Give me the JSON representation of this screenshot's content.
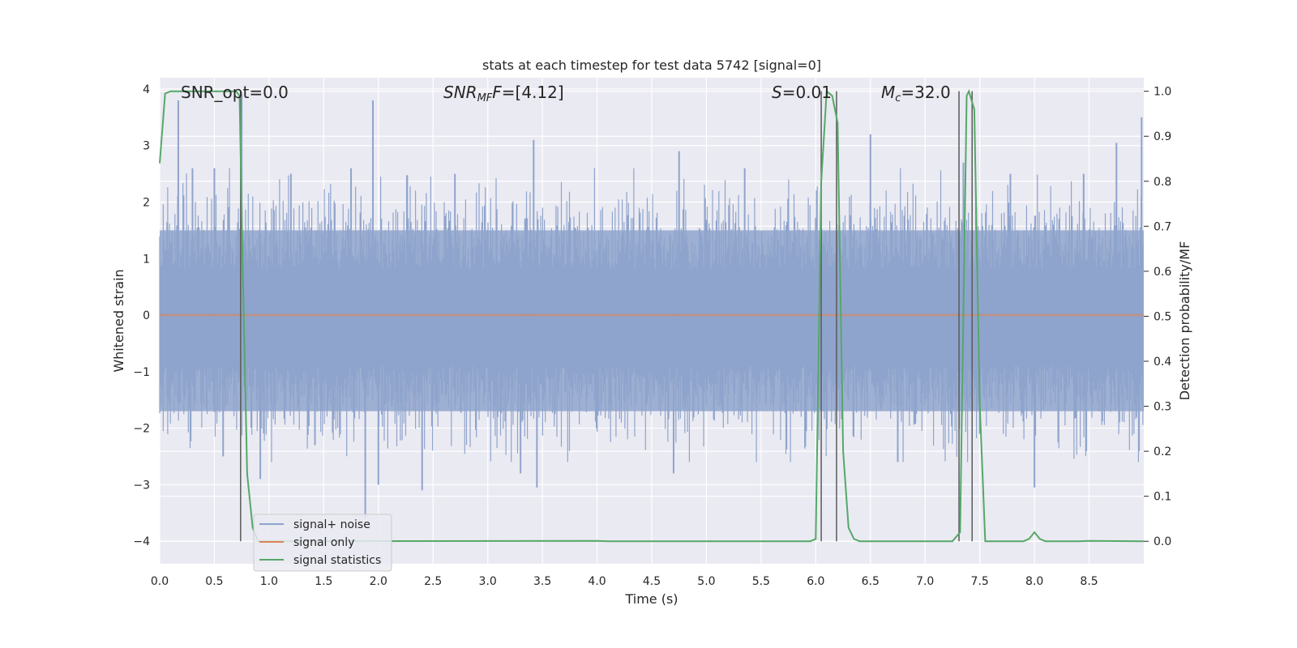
{
  "chart_data": {
    "type": "line",
    "title": "stats at each timestep for test data 5742 [signal=0]",
    "xlabel": "Time (s)",
    "ylabel_left": "Whitened strain",
    "ylabel_right": "Detection probability/MF",
    "xlim": [
      0.0,
      9.0
    ],
    "ylim_left": [
      -4.4,
      4.2
    ],
    "ylim_right": [
      -0.05,
      1.03
    ],
    "x_ticks": [
      "0.0",
      "0.5",
      "1.0",
      "1.5",
      "2.0",
      "2.5",
      "3.0",
      "3.5",
      "4.0",
      "4.5",
      "5.0",
      "5.5",
      "6.0",
      "6.5",
      "7.0",
      "7.5",
      "8.0",
      "8.5"
    ],
    "y_ticks_left": [
      "4",
      "3",
      "2",
      "1",
      "0",
      "−1",
      "−2",
      "−3",
      "−4"
    ],
    "y_ticks_right": [
      "1.0",
      "0.9",
      "0.8",
      "0.7",
      "0.6",
      "0.5",
      "0.4",
      "0.3",
      "0.2",
      "0.1",
      "0.0"
    ],
    "grid": true,
    "legend_position": "lower-left",
    "legend": [
      {
        "label": "signal+ noise",
        "color": "#8fa4cc"
      },
      {
        "label": "signal only",
        "color": "#dd8452"
      },
      {
        "label": "signal statistics",
        "color": "#55a868"
      }
    ],
    "annotations": {
      "snr_opt": "SNR_opt=0.0",
      "snr_mf_name": "SNR",
      "snr_mf_sub": "MF",
      "snr_mf_value": "=[4.12]",
      "s_name": "S",
      "s_value": "=0.01",
      "mc_name": "M",
      "mc_sub": "c",
      "mc_value": "=32.0"
    },
    "noise_series": {
      "name": "signal+ noise",
      "description_band": [
        -1.7,
        1.5
      ],
      "peaks": [
        {
          "x": 0.17,
          "y": 3.8
        },
        {
          "x": 0.3,
          "y": 2.6
        },
        {
          "x": 0.5,
          "y": 2.6
        },
        {
          "x": 0.58,
          "y": -2.5
        },
        {
          "x": 0.75,
          "y": 3.9
        },
        {
          "x": 0.92,
          "y": -2.9
        },
        {
          "x": 1.2,
          "y": 2.5
        },
        {
          "x": 1.42,
          "y": -2.3
        },
        {
          "x": 1.75,
          "y": 2.6
        },
        {
          "x": 1.88,
          "y": -3.6
        },
        {
          "x": 1.95,
          "y": 3.8
        },
        {
          "x": 2.0,
          "y": -3.0
        },
        {
          "x": 2.4,
          "y": -3.1
        },
        {
          "x": 2.7,
          "y": 2.5
        },
        {
          "x": 3.3,
          "y": -2.8
        },
        {
          "x": 3.45,
          "y": -3.05
        },
        {
          "x": 3.42,
          "y": 3.1
        },
        {
          "x": 4.7,
          "y": -2.8
        },
        {
          "x": 4.75,
          "y": 2.9
        },
        {
          "x": 5.35,
          "y": 2.6
        },
        {
          "x": 6.5,
          "y": 3.2
        },
        {
          "x": 6.75,
          "y": -2.6
        },
        {
          "x": 7.35,
          "y": 2.7
        },
        {
          "x": 7.5,
          "y": -2.1
        },
        {
          "x": 7.78,
          "y": 2.5
        },
        {
          "x": 8.0,
          "y": -3.05
        },
        {
          "x": 8.45,
          "y": 2.5
        },
        {
          "x": 8.75,
          "y": 3.05
        },
        {
          "x": 8.98,
          "y": 3.5
        }
      ]
    },
    "signal_only": {
      "name": "signal only",
      "x": [
        0.0,
        9.0
      ],
      "y": [
        0.0,
        0.0
      ]
    },
    "statistics": {
      "name": "signal statistics",
      "x": [
        0.0,
        0.05,
        0.1,
        0.2,
        0.7,
        0.73,
        0.76,
        0.8,
        0.85,
        0.9,
        4.0,
        4.1,
        5.95,
        6.0,
        6.05,
        6.1,
        6.15,
        6.2,
        6.25,
        6.3,
        6.35,
        6.4,
        7.25,
        7.32,
        7.38,
        7.4,
        7.45,
        7.5,
        7.55,
        7.6,
        7.9,
        7.95,
        8.0,
        8.05,
        8.1,
        8.4,
        8.5,
        9.0
      ],
      "y": [
        0.84,
        0.995,
        1.0,
        1.0,
        1.0,
        0.99,
        0.6,
        0.15,
        0.03,
        0.0,
        0.001,
        0.0,
        0.0,
        0.005,
        0.8,
        1.0,
        0.99,
        0.93,
        0.2,
        0.03,
        0.005,
        0.0,
        0.0,
        0.02,
        0.99,
        1.0,
        0.96,
        0.3,
        0.0,
        0.0,
        0.0,
        0.005,
        0.02,
        0.005,
        0.0,
        0.0,
        0.001,
        0.0
      ]
    },
    "detection_lines": [
      0.74,
      6.05,
      6.19,
      7.31,
      7.43
    ]
  }
}
